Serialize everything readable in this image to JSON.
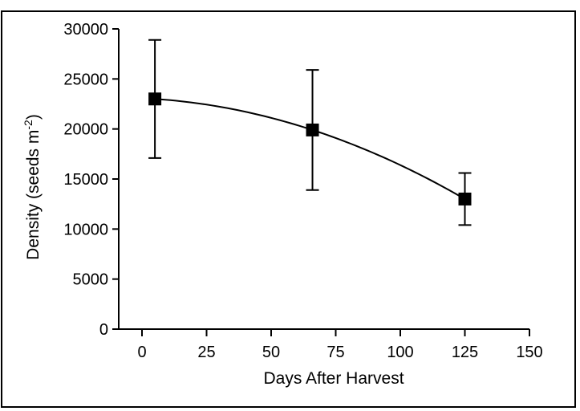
{
  "chart_data": {
    "type": "scatter",
    "title": "",
    "xlabel": "Days After Harvest",
    "ylabel_main": "Density (seeds m",
    "ylabel_sup": "-2",
    "ylabel_close": ")",
    "xlim": [
      0,
      150
    ],
    "ylim": [
      0,
      30000
    ],
    "x_ticks": [
      0,
      25,
      50,
      75,
      100,
      125,
      150
    ],
    "y_ticks": [
      0,
      5000,
      10000,
      15000,
      20000,
      25000,
      30000
    ],
    "grid": false,
    "legend": "none",
    "marker": "filled-square",
    "fit_curve": true,
    "series": [
      {
        "x": [
          5,
          66,
          125
        ],
        "y": [
          23000,
          19900,
          13000
        ],
        "error_upper": [
          28900,
          25900,
          15600
        ],
        "error_lower": [
          17100,
          13900,
          10400
        ]
      }
    ],
    "colors": {
      "marks": "#000000",
      "background": "#ffffff"
    }
  }
}
